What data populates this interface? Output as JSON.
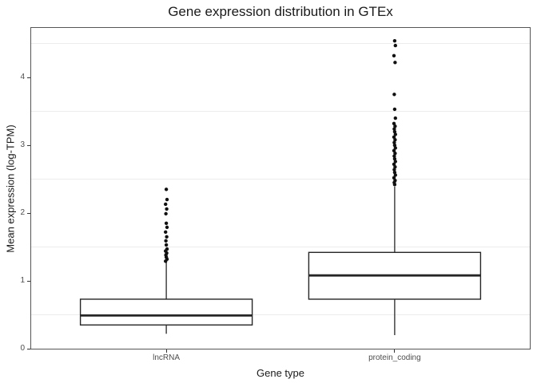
{
  "title": "Gene expression distribution in GTEx",
  "axes": {
    "x_title": "Gene type",
    "y_title": "Mean expression (log-TPM)",
    "y_tick_labels": [
      "0",
      "1",
      "2",
      "3",
      "4"
    ],
    "x_tick_labels": [
      "lncRNA",
      "protein_coding"
    ]
  },
  "colors": {
    "background": "#ffffff",
    "panel_border": "#555555",
    "gridline_minor": "#ececec",
    "box_stroke": "#262626",
    "box_fill": "#ffffff",
    "outlier_fill": "#111111",
    "tick_mark": "#333333",
    "tick_label_text": "#4d4d4d",
    "title_text": "#1a1a1a"
  },
  "chart_data": {
    "type": "boxplot",
    "title": "Gene expression distribution in GTEx",
    "xlabel": "Gene type",
    "ylabel": "Mean expression (log-TPM)",
    "categories": [
      "lncRNA",
      "protein_coding"
    ],
    "y_ticks": [
      0,
      1,
      2,
      3,
      4
    ],
    "ylim": [
      0,
      4.73
    ],
    "grid": "minor-horizontal-only",
    "minor_gridlines": [
      0.5,
      1.5,
      2.5,
      3.5,
      4.5
    ],
    "legend": "none",
    "series": [
      {
        "name": "lncRNA",
        "q1": 0.35,
        "median": 0.49,
        "q3": 0.73,
        "whisker_low": 0.22,
        "whisker_high": 1.28,
        "outliers": [
          2.35,
          2.2,
          2.13,
          2.06,
          1.99,
          1.85,
          1.79,
          1.72,
          1.65,
          1.59,
          1.53,
          1.47,
          1.44,
          1.41,
          1.38,
          1.35,
          1.32,
          1.29
        ]
      },
      {
        "name": "protein_coding",
        "q1": 0.73,
        "median": 1.08,
        "q3": 1.42,
        "whisker_low": 0.2,
        "whisker_high": 2.39,
        "outliers": [
          4.54,
          4.47,
          4.32,
          4.22,
          3.75,
          3.53,
          3.4,
          3.32,
          3.28,
          3.24,
          3.2,
          3.16,
          3.12,
          3.08,
          3.04,
          3.0,
          2.96,
          2.92,
          2.88,
          2.84,
          2.8,
          2.76,
          2.72,
          2.68,
          2.64,
          2.6,
          2.56,
          2.52,
          2.48,
          2.45,
          2.42
        ]
      }
    ]
  }
}
